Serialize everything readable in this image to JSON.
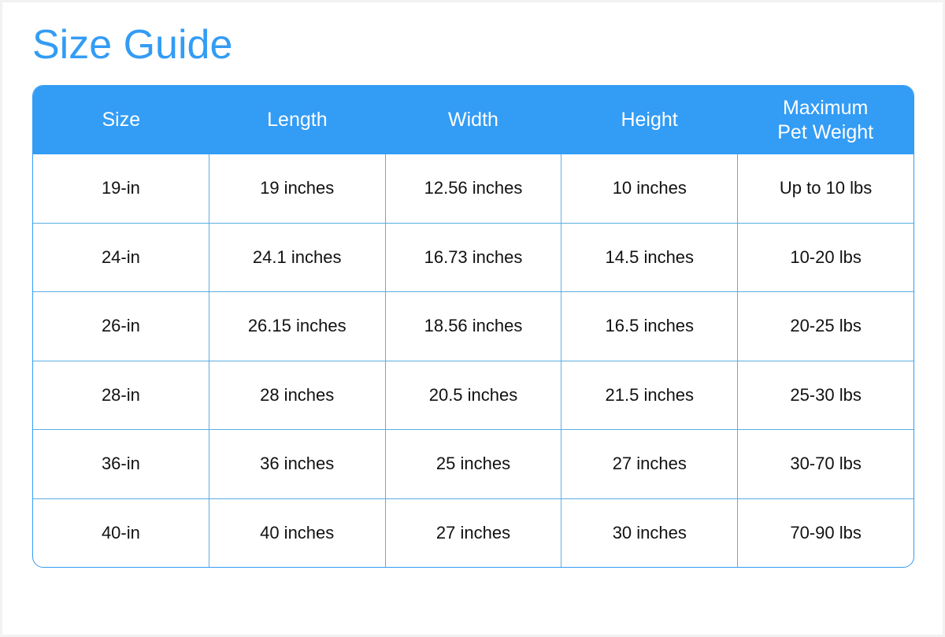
{
  "title": "Size Guide",
  "colors": {
    "accent": "#339cf5"
  },
  "table": {
    "headers": [
      "Size",
      "Length",
      "Width",
      "Height",
      "Maximum\nPet Weight"
    ],
    "rows": [
      [
        "19-in",
        "19 inches",
        "12.56 inches",
        "10 inches",
        "Up to 10 lbs"
      ],
      [
        "24-in",
        "24.1 inches",
        "16.73 inches",
        "14.5 inches",
        "10-20 lbs"
      ],
      [
        "26-in",
        "26.15 inches",
        "18.56 inches",
        "16.5 inches",
        "20-25 lbs"
      ],
      [
        "28-in",
        "28 inches",
        "20.5 inches",
        "21.5 inches",
        "25-30 lbs"
      ],
      [
        "36-in",
        "36 inches",
        "25 inches",
        "27 inches",
        "30-70 lbs"
      ],
      [
        "40-in",
        "40 inches",
        "27 inches",
        "30 inches",
        "70-90 lbs"
      ]
    ]
  }
}
